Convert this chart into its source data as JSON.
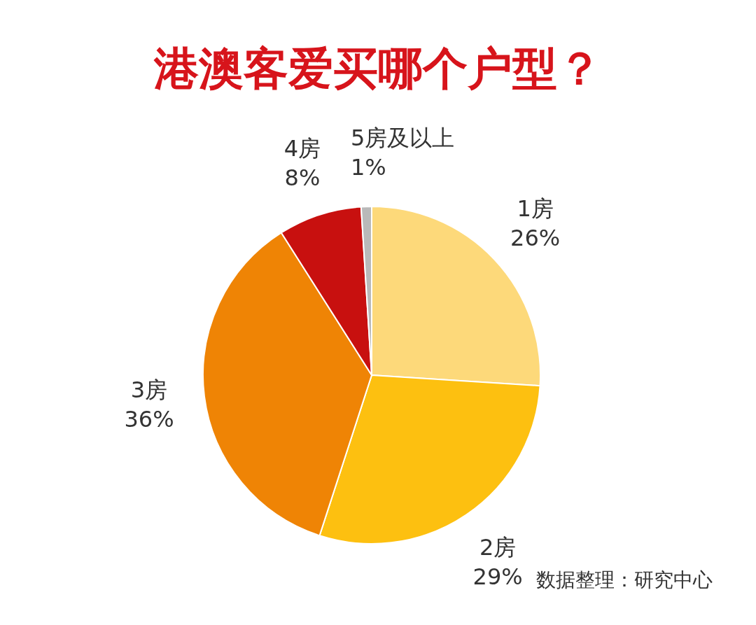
{
  "chart_data": {
    "type": "pie",
    "title": "港澳客爱买哪个户型？",
    "categories": [
      "1房",
      "2房",
      "3房",
      "4房",
      "5房及以上"
    ],
    "values": [
      26,
      29,
      36,
      8,
      1
    ],
    "value_labels": [
      "26%",
      "29%",
      "36%",
      "8%",
      "1%"
    ],
    "colors": [
      "#fdd97a",
      "#fdc010",
      "#ef8405",
      "#c8100f",
      "#b9b9b9"
    ],
    "annotations": [
      "数据整理：研究中心"
    ]
  }
}
